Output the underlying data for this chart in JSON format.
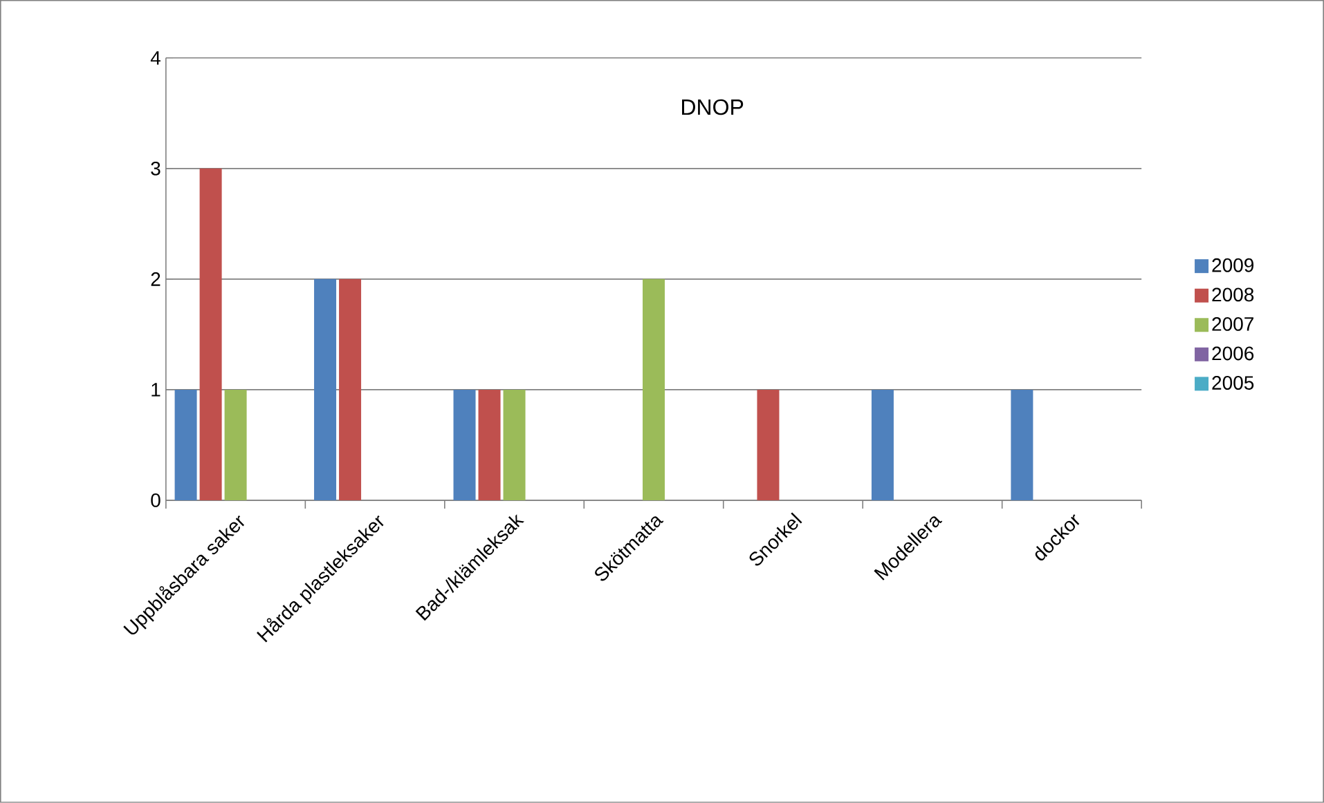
{
  "chart_data": {
    "type": "bar",
    "title": "DNOP",
    "categories": [
      "Uppblåsbara saker",
      "Hårda plastleksaker",
      "Bad-/klämleksak",
      "Skötmatta",
      "Snorkel",
      "Modellera",
      "dockor"
    ],
    "series": [
      {
        "name": "2009",
        "color": "#4f81bd",
        "values": [
          1,
          2,
          1,
          0,
          0,
          1,
          1
        ]
      },
      {
        "name": "2008",
        "color": "#c0504d",
        "values": [
          3,
          2,
          1,
          0,
          1,
          0,
          0
        ]
      },
      {
        "name": "2007",
        "color": "#9bbb59",
        "values": [
          1,
          0,
          1,
          2,
          0,
          0,
          0
        ]
      },
      {
        "name": "2006",
        "color": "#8064a2",
        "values": [
          0,
          0,
          0,
          0,
          0,
          0,
          0
        ]
      },
      {
        "name": "2005",
        "color": "#4bacc6",
        "values": [
          0,
          0,
          0,
          0,
          0,
          0,
          0
        ]
      }
    ],
    "ylim": [
      0,
      4
    ],
    "yticks": [
      0,
      1,
      2,
      3,
      4
    ],
    "grid": "y",
    "legend": "right"
  }
}
